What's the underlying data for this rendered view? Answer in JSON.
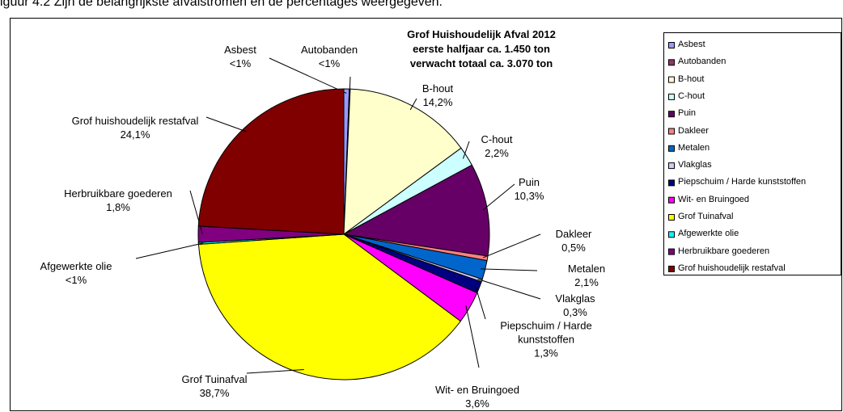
{
  "caption": "iguur 4.2 Zijn de belangrijkste afvalstromen en de percentages weergegeven.",
  "chart_data": {
    "type": "pie",
    "title": [
      "Grof Huishoudelijk Afval 2012",
      "eerste halfjaar ca. 1.450 ton",
      "verwacht totaal ca. 3.070 ton"
    ],
    "categories": [
      "Asbest",
      "Autobanden",
      "B-hout",
      "C-hout",
      "Puin",
      "Dakleer",
      "Metalen",
      "Vlakglas",
      "Piepschuim / Harde kunststoffen",
      "Wit- en Bruingoed",
      "Grof Tuinafval",
      "Afgewerkte olie",
      "Herbruikbare goederen",
      "Grof huishoudelijk restafval"
    ],
    "values": [
      0.6,
      0.1,
      14.2,
      2.2,
      10.3,
      0.5,
      2.1,
      0.3,
      1.3,
      3.6,
      38.7,
      0.2,
      1.8,
      24.1
    ],
    "value_labels": [
      "<1%",
      "<1%",
      "14,2%",
      "2,2%",
      "10,3%",
      "0,5%",
      "2,1%",
      "0,3%",
      "1,3%",
      "3,6%",
      "38,7%",
      "<1%",
      "1,8%",
      "24,1%"
    ],
    "colors": [
      "#9999ff",
      "#993366",
      "#ffffcc",
      "#ccffff",
      "#660066",
      "#ff8080",
      "#0066cc",
      "#ccccff",
      "#000080",
      "#ff00ff",
      "#ffff00",
      "#00ffff",
      "#800080",
      "#800000"
    ],
    "legend": "right"
  }
}
